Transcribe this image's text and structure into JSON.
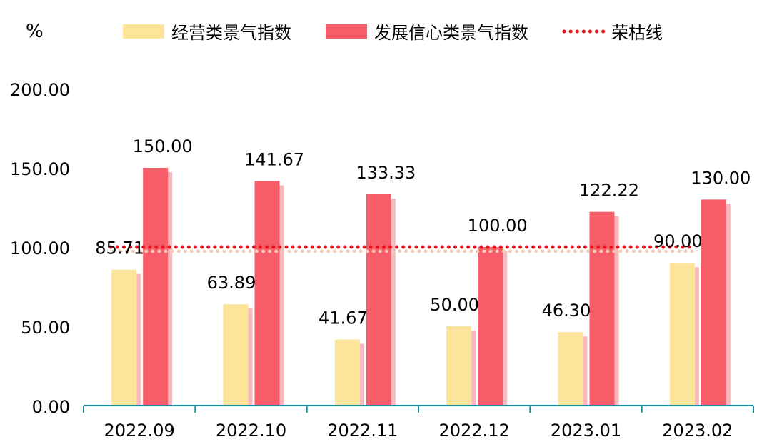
{
  "chart_data": {
    "type": "bar",
    "unit_label": "%",
    "categories": [
      "2022.09",
      "2022.10",
      "2022.11",
      "2022.12",
      "2023.01",
      "2023.02"
    ],
    "series": [
      {
        "name": "经营类景气指数",
        "values": [
          85.71,
          63.89,
          41.67,
          50.0,
          46.3,
          90.0
        ],
        "labels": [
          "85.71",
          "63.89",
          "41.67",
          "50.00",
          "46.30",
          "90.00"
        ],
        "color": "#FCE49A"
      },
      {
        "name": "发展信心类景气指数",
        "values": [
          150.0,
          141.67,
          133.33,
          100.0,
          122.22,
          130.0
        ],
        "labels": [
          "150.00",
          "141.67",
          "133.33",
          "100.00",
          "122.22",
          "130.00"
        ],
        "color": "#F75D68"
      }
    ],
    "reference_line": {
      "name": "荣枯线",
      "value": 100,
      "color": "#E8131B",
      "style": "dotted"
    },
    "y_ticks": [
      "0.00",
      "50.00",
      "100.00",
      "150.00",
      "200.00"
    ],
    "ylim": [
      0,
      200
    ],
    "axis_color": "#1A8A9E",
    "legend_position": "top",
    "grid": false
  }
}
